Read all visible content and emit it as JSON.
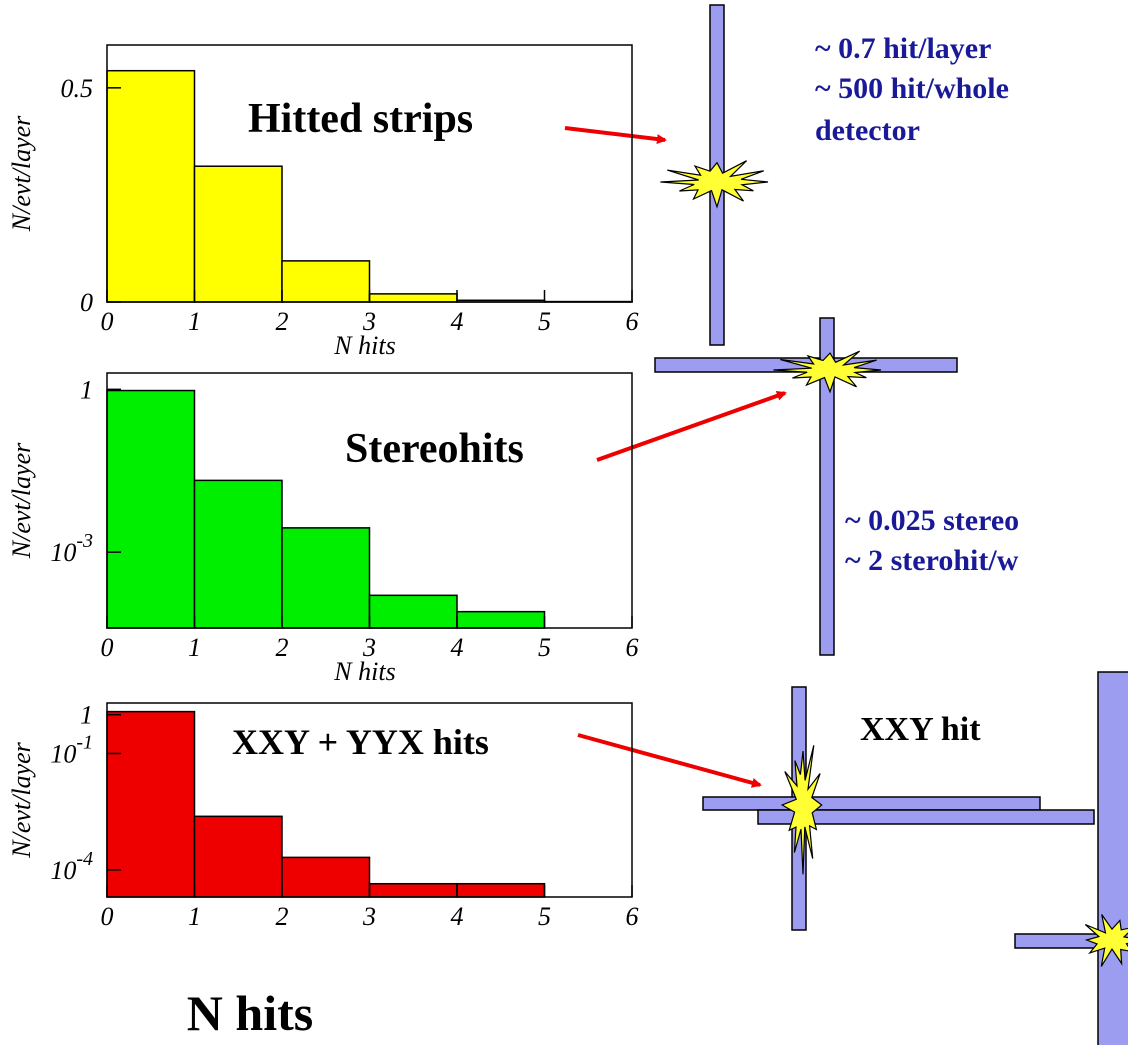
{
  "chart_data": [
    {
      "type": "histogram",
      "x_label": "N hits",
      "y_label": "N/evt/layer",
      "color": "#ffff00",
      "bins": [
        0,
        1,
        2,
        3,
        4,
        5,
        6
      ],
      "values": [
        0.54,
        0.317,
        0.096,
        0.019,
        0.004,
        0.001
      ],
      "xlim": [
        0,
        6
      ],
      "xticks": [
        0,
        1,
        2,
        3,
        4,
        5,
        6
      ],
      "ylim": [
        0,
        0.6
      ],
      "yticks": [
        0,
        0.5
      ],
      "log": false
    },
    {
      "type": "histogram",
      "x_label": "N hits",
      "y_label": "N/evt/layer",
      "color": "#00ee00",
      "bins": [
        0,
        1,
        2,
        3,
        4,
        5
      ],
      "values": [
        0.95,
        0.021,
        0.0028,
        0.00016,
        8e-05
      ],
      "xlim": [
        0,
        6
      ],
      "xticks": [
        0,
        1,
        2,
        3,
        4,
        5,
        6
      ],
      "ylim": [
        4e-05,
        2
      ],
      "yticks": [
        1,
        {
          "value": 0.001,
          "label": "10^-3"
        }
      ],
      "log": true
    },
    {
      "type": "histogram",
      "x_label": "N hits",
      "y_label": "N/evt/layer",
      "color": "#ee0000",
      "bins": [
        0,
        1,
        2,
        3,
        4,
        5
      ],
      "values": [
        1.2,
        0.0024,
        0.00021,
        4.4e-05,
        4.4e-05
      ],
      "xlim": [
        0,
        6
      ],
      "xticks": [
        0,
        1,
        2,
        3,
        4,
        5,
        6
      ],
      "ylim": [
        2e-05,
        2
      ],
      "yticks": [
        1,
        {
          "value": 0.1,
          "label": "10^-1"
        },
        {
          "value": 0.0001,
          "label": "10^-4"
        }
      ],
      "log": true
    }
  ],
  "annotations": {
    "hitted_strips": "Hitted strips",
    "stereohits": "Stereohits",
    "xxy_yyx": "XXY + YYX hits",
    "hit_per_layer": "~ 0.7 hit/layer",
    "hit_whole": "~ 500 hit/whole",
    "hit_whole_2": "detector",
    "stereo_per_layer": "~ 0.025 stereo",
    "stereo_whole": "~ 2 sterohit/w",
    "xxy_hit": "XXY hit"
  }
}
